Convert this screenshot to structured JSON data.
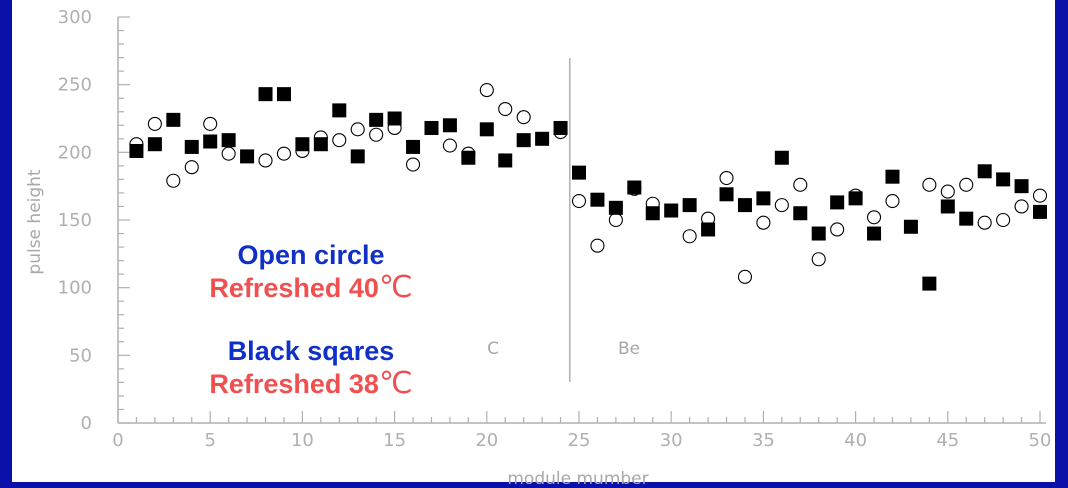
{
  "chart_data": {
    "type": "scatter",
    "xlabel": "module mumber",
    "ylabel": "pulse height",
    "xlim": [
      0,
      50
    ],
    "ylim": [
      0,
      300
    ],
    "x_ticks": [
      "0",
      "5",
      "10",
      "15",
      "20",
      "25",
      "30",
      "35",
      "40",
      "45",
      "50"
    ],
    "y_ticks": [
      "0",
      "50",
      "100",
      "150",
      "200",
      "250",
      "300"
    ],
    "grid": false,
    "separator_x": 24.5,
    "region_labels": [
      "C",
      "Be"
    ],
    "series": [
      {
        "marker": "open-circle",
        "points": [
          [
            1,
            206
          ],
          [
            2,
            221
          ],
          [
            3,
            179
          ],
          [
            4,
            189
          ],
          [
            5,
            221
          ],
          [
            6,
            199
          ],
          [
            8,
            194
          ],
          [
            9,
            199
          ],
          [
            10,
            201
          ],
          [
            11,
            211
          ],
          [
            12,
            209
          ],
          [
            13,
            217
          ],
          [
            14,
            213
          ],
          [
            15,
            218
          ],
          [
            16,
            191
          ],
          [
            18,
            205
          ],
          [
            19,
            199
          ],
          [
            20,
            246
          ],
          [
            21,
            232
          ],
          [
            22,
            226
          ],
          [
            24,
            215
          ],
          [
            25,
            164
          ],
          [
            26,
            131
          ],
          [
            27,
            150
          ],
          [
            28,
            173
          ],
          [
            29,
            162
          ],
          [
            31,
            138
          ],
          [
            32,
            151
          ],
          [
            33,
            181
          ],
          [
            34,
            108
          ],
          [
            35,
            148
          ],
          [
            36,
            161
          ],
          [
            37,
            176
          ],
          [
            38,
            121
          ],
          [
            39,
            143
          ],
          [
            40,
            168
          ],
          [
            41,
            152
          ],
          [
            42,
            164
          ],
          [
            44,
            176
          ],
          [
            45,
            171
          ],
          [
            46,
            176
          ],
          [
            47,
            148
          ],
          [
            48,
            150
          ],
          [
            49,
            160
          ],
          [
            50,
            168
          ]
        ]
      },
      {
        "marker": "filled-square",
        "points": [
          [
            1,
            201
          ],
          [
            2,
            206
          ],
          [
            3,
            224
          ],
          [
            4,
            204
          ],
          [
            5,
            208
          ],
          [
            6,
            209
          ],
          [
            7,
            197
          ],
          [
            8,
            243
          ],
          [
            9,
            243
          ],
          [
            10,
            206
          ],
          [
            11,
            206
          ],
          [
            12,
            231
          ],
          [
            13,
            197
          ],
          [
            14,
            224
          ],
          [
            15,
            225
          ],
          [
            16,
            204
          ],
          [
            17,
            218
          ],
          [
            18,
            220
          ],
          [
            19,
            196
          ],
          [
            20,
            217
          ],
          [
            21,
            194
          ],
          [
            22,
            209
          ],
          [
            23,
            210
          ],
          [
            24,
            218
          ],
          [
            25,
            185
          ],
          [
            26,
            165
          ],
          [
            27,
            159
          ],
          [
            28,
            174
          ],
          [
            29,
            155
          ],
          [
            30,
            157
          ],
          [
            31,
            161
          ],
          [
            32,
            143
          ],
          [
            33,
            169
          ],
          [
            34,
            161
          ],
          [
            35,
            166
          ],
          [
            36,
            196
          ],
          [
            37,
            155
          ],
          [
            38,
            140
          ],
          [
            39,
            163
          ],
          [
            40,
            166
          ],
          [
            41,
            140
          ],
          [
            42,
            182
          ],
          [
            43,
            145
          ],
          [
            44,
            103
          ],
          [
            45,
            160
          ],
          [
            46,
            151
          ],
          [
            47,
            186
          ],
          [
            48,
            180
          ],
          [
            49,
            175
          ],
          [
            50,
            156
          ]
        ]
      }
    ]
  },
  "annotations": {
    "open_label": "Open circle",
    "open_temp": "Refreshed 40",
    "square_label": "Black sqares",
    "square_temp": "Refreshed 38",
    "deg_symbol": "℃"
  },
  "colors": {
    "background": "#0a10a8",
    "plot_bg": "#ffffff",
    "axis": "#b0b0b0",
    "label_blue": "#1030c8",
    "label_red": "#f05050",
    "marker": "#000000"
  }
}
